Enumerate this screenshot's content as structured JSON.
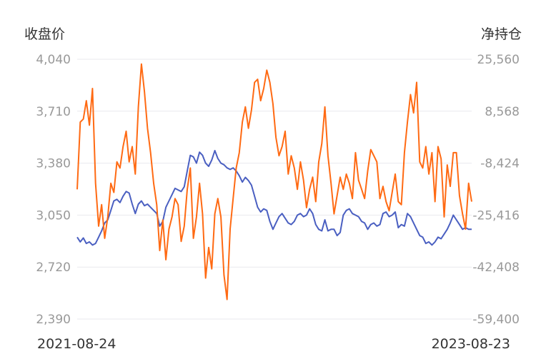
{
  "chart_data": {
    "type": "line",
    "y_left_title": "收盘价",
    "y_right_title": "净持仓",
    "y_left_ticks": [
      "4,040",
      "3,710",
      "3,380",
      "3,050",
      "2,720",
      "2,390"
    ],
    "y_right_ticks": [
      "25,560",
      "8,568",
      "-8,424",
      "-25,416",
      "-42,408",
      "-59,400"
    ],
    "y_left_range": [
      2390,
      4040
    ],
    "y_right_range": [
      -59400,
      25560
    ],
    "x_ticks": [
      "2021-08-24",
      "2023-08-23"
    ],
    "grid": true,
    "legend": "none",
    "colors": {
      "close": "#4a5fc1",
      "net_position": "#ff6a13"
    },
    "series": [
      {
        "key": "close",
        "axis": "left",
        "values": [
          2910,
          2880,
          2905,
          2870,
          2880,
          2860,
          2870,
          2910,
          2950,
          3000,
          3020,
          3080,
          3140,
          3150,
          3130,
          3170,
          3200,
          3190,
          3120,
          3060,
          3120,
          3140,
          3110,
          3120,
          3100,
          3080,
          3060,
          2980,
          3010,
          3100,
          3140,
          3180,
          3220,
          3210,
          3200,
          3230,
          3330,
          3430,
          3420,
          3380,
          3450,
          3430,
          3380,
          3360,
          3400,
          3460,
          3410,
          3380,
          3370,
          3350,
          3340,
          3350,
          3330,
          3300,
          3260,
          3290,
          3270,
          3240,
          3170,
          3100,
          3070,
          3090,
          3080,
          3010,
          2960,
          3000,
          3040,
          3060,
          3030,
          3000,
          2990,
          3010,
          3050,
          3060,
          3040,
          3050,
          3090,
          3060,
          2990,
          2960,
          2950,
          3020,
          2950,
          2960,
          2960,
          2920,
          2940,
          3050,
          3080,
          3090,
          3060,
          3050,
          3040,
          3010,
          3000,
          2960,
          2990,
          3000,
          2980,
          2990,
          3060,
          3070,
          3040,
          3050,
          3070,
          2970,
          2990,
          2980,
          3060,
          3040,
          3000,
          2960,
          2920,
          2910,
          2870,
          2880,
          2860,
          2880,
          2910,
          2900,
          2930,
          2960,
          3000,
          3050,
          3020,
          2990,
          2960,
          2970,
          2960,
          2960
        ]
      },
      {
        "key": "net_position",
        "axis": "right",
        "values": [
          -17000,
          5000,
          6000,
          12000,
          4000,
          16000,
          -15000,
          -29000,
          -22000,
          -33000,
          -26000,
          -15000,
          -18000,
          -8000,
          -10000,
          -3000,
          2000,
          -8000,
          -3000,
          -12000,
          10000,
          24000,
          15000,
          3000,
          -5000,
          -15000,
          -22000,
          -37000,
          -27000,
          -40000,
          -30000,
          -26000,
          -20000,
          -22000,
          -34000,
          -29000,
          -17000,
          -10000,
          -33000,
          -26000,
          -15000,
          -25000,
          -46000,
          -36000,
          -43000,
          -25000,
          -20000,
          -26000,
          -45000,
          -53000,
          -30000,
          -20000,
          -10000,
          -5000,
          5000,
          10000,
          3000,
          9000,
          18000,
          19000,
          12000,
          16000,
          22000,
          18000,
          11000,
          0,
          -6000,
          -3000,
          2000,
          -12000,
          -6000,
          -10000,
          -17000,
          -8000,
          -14000,
          -23000,
          -17000,
          -13000,
          -21000,
          -8000,
          -2000,
          10000,
          -6000,
          -15000,
          -25000,
          -19000,
          -13000,
          -17000,
          -12000,
          -15000,
          -20000,
          -5000,
          -14000,
          -17000,
          -20000,
          -11000,
          -4000,
          -6000,
          -8000,
          -20000,
          -16000,
          -21000,
          -24000,
          -18000,
          -12000,
          -21000,
          -22000,
          -5000,
          5000,
          14000,
          8000,
          18000,
          -8000,
          -10000,
          -3000,
          -12000,
          -5000,
          -21000,
          -3000,
          -7000,
          -26000,
          -9000,
          -16000,
          -5000,
          -5000,
          -19000,
          -25000,
          -30000,
          -15000,
          -21000
        ]
      }
    ]
  }
}
